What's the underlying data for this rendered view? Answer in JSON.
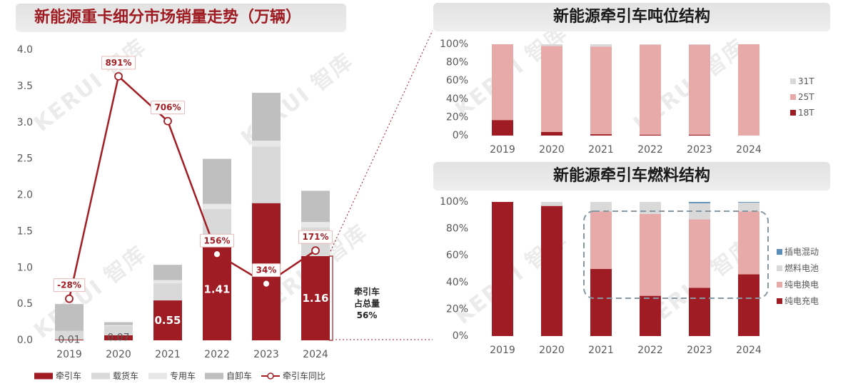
{
  "watermark": "KERUI 智库",
  "colors": {
    "accent": "#a01c24",
    "title_bg": "#e8e8e8",
    "highlight_border": "#8797a3"
  },
  "chart_data": [
    {
      "type": "bar",
      "stacked": true,
      "title": "新能源重卡细分市场销量走势（万辆）",
      "categories": [
        "2019",
        "2020",
        "2021",
        "2022",
        "2023",
        "2024"
      ],
      "series": [
        {
          "name": "牵引车",
          "color": "#a01c24",
          "values": [
            0.01,
            0.07,
            0.55,
            1.41,
            1.89,
            1.16
          ]
        },
        {
          "name": "载货车",
          "color": "#d9d9d9",
          "values": [
            0.12,
            0.13,
            0.24,
            0.4,
            0.78,
            0.4
          ]
        },
        {
          "name": "专用车",
          "color": "#e8e8e8",
          "values": [
            0.0,
            0.01,
            0.04,
            0.07,
            0.08,
            0.07
          ]
        },
        {
          "name": "自卸车",
          "color": "#bfbfbf",
          "values": [
            0.37,
            0.04,
            0.21,
            0.62,
            0.66,
            0.43
          ]
        }
      ],
      "line": {
        "name": "牵引车同比",
        "color": "#a31d24",
        "values": [
          -28,
          891,
          706,
          156,
          34,
          171
        ],
        "labels": [
          "-28%",
          "891%",
          "706%",
          "156%",
          "34%",
          "171%"
        ],
        "y2lim": [
          -200,
          1000
        ]
      },
      "ylim": [
        0,
        4
      ],
      "yticks": [
        "0.0",
        "0.5",
        "1.0",
        "1.5",
        "2.0",
        "2.5",
        "3.0",
        "3.5",
        "4.0"
      ],
      "annotation": [
        "牵引车",
        "占总量",
        "56%"
      ],
      "legend": "bottom",
      "grid": false
    },
    {
      "type": "bar",
      "stacked": true,
      "title": "新能源牵引车吨位结构",
      "categories": [
        "2019",
        "2020",
        "2021",
        "2022",
        "2023",
        "2024"
      ],
      "series": [
        {
          "name": "18T",
          "color": "#a01c24",
          "values": [
            17,
            4,
            1.5,
            1,
            1,
            0
          ]
        },
        {
          "name": "25T",
          "color": "#e8a9a9",
          "values": [
            83,
            94,
            96,
            98.5,
            98.5,
            100
          ]
        },
        {
          "name": "31T",
          "color": "#d9d9d9",
          "values": [
            0,
            2,
            2.5,
            0.5,
            0.5,
            0
          ]
        }
      ],
      "ylim": [
        0,
        100
      ],
      "yticks": [
        "0%",
        "20%",
        "40%",
        "60%",
        "80%",
        "100%"
      ],
      "legend": "right",
      "grid": false
    },
    {
      "type": "bar",
      "stacked": true,
      "title": "新能源牵引车燃料结构",
      "categories": [
        "2019",
        "2020",
        "2021",
        "2022",
        "2023",
        "2024"
      ],
      "series": [
        {
          "name": "纯电充电",
          "color": "#a01c24",
          "values": [
            100,
            97,
            50,
            30,
            36,
            46
          ]
        },
        {
          "name": "纯电换电",
          "color": "#e8a9a9",
          "values": [
            0,
            0,
            43,
            61,
            51,
            47
          ]
        },
        {
          "name": "燃料电池",
          "color": "#d9d9d9",
          "values": [
            0,
            3,
            7,
            9,
            12,
            6.5
          ]
        },
        {
          "name": "插电混动",
          "color": "#5a8fbb",
          "values": [
            0,
            0,
            0,
            0,
            1,
            0.5
          ]
        }
      ],
      "ylim": [
        0,
        100
      ],
      "yticks": [
        "0%",
        "20%",
        "40%",
        "60%",
        "80%",
        "100%"
      ],
      "legend": "right",
      "grid": false
    }
  ]
}
